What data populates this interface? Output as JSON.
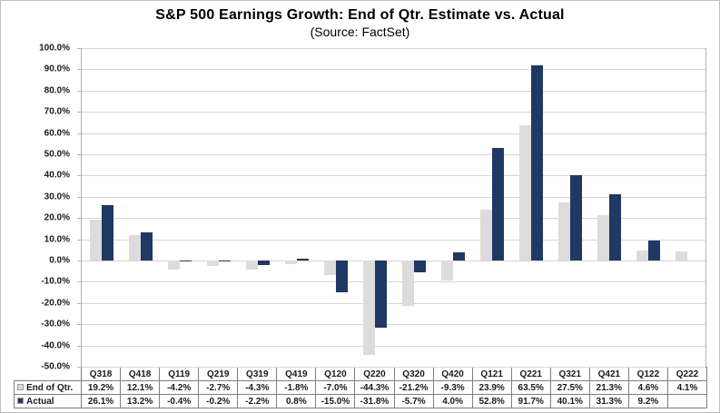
{
  "chart": {
    "title": "S&P 500 Earnings Growth: End of Qtr. Estimate vs. Actual",
    "subtitle": "(Source: FactSet)"
  },
  "chart_data": {
    "type": "bar",
    "title": "S&P 500 Earnings Growth: End of Qtr. Estimate vs. Actual",
    "subtitle": "(Source: FactSet)",
    "categories": [
      "Q318",
      "Q418",
      "Q119",
      "Q219",
      "Q319",
      "Q419",
      "Q120",
      "Q220",
      "Q320",
      "Q420",
      "Q121",
      "Q221",
      "Q321",
      "Q421",
      "Q122",
      "Q222"
    ],
    "series": [
      {
        "name": "End of Qtr.",
        "color": "#dcdcdc",
        "values": [
          19.2,
          12.1,
          -4.2,
          -2.7,
          -4.3,
          -1.8,
          -7.0,
          -44.3,
          -21.2,
          -9.3,
          23.9,
          63.5,
          27.5,
          21.3,
          4.6,
          4.1
        ]
      },
      {
        "name": "Actual",
        "color": "#1f3864",
        "values": [
          26.1,
          13.2,
          -0.4,
          -0.2,
          -2.2,
          0.8,
          -15.0,
          -31.8,
          -5.7,
          4.0,
          52.8,
          91.7,
          40.1,
          31.3,
          9.2,
          null
        ]
      }
    ],
    "ylim": [
      -50,
      100
    ],
    "ytick_step": 10,
    "value_suffix": "%",
    "grid": true,
    "legend_position": "table-left",
    "colors": {
      "gridline": "#d6d6d6",
      "axis": "#b3b3b3",
      "series_end_of_qtr": "#dcdcdc",
      "series_actual": "#1f3864"
    }
  }
}
